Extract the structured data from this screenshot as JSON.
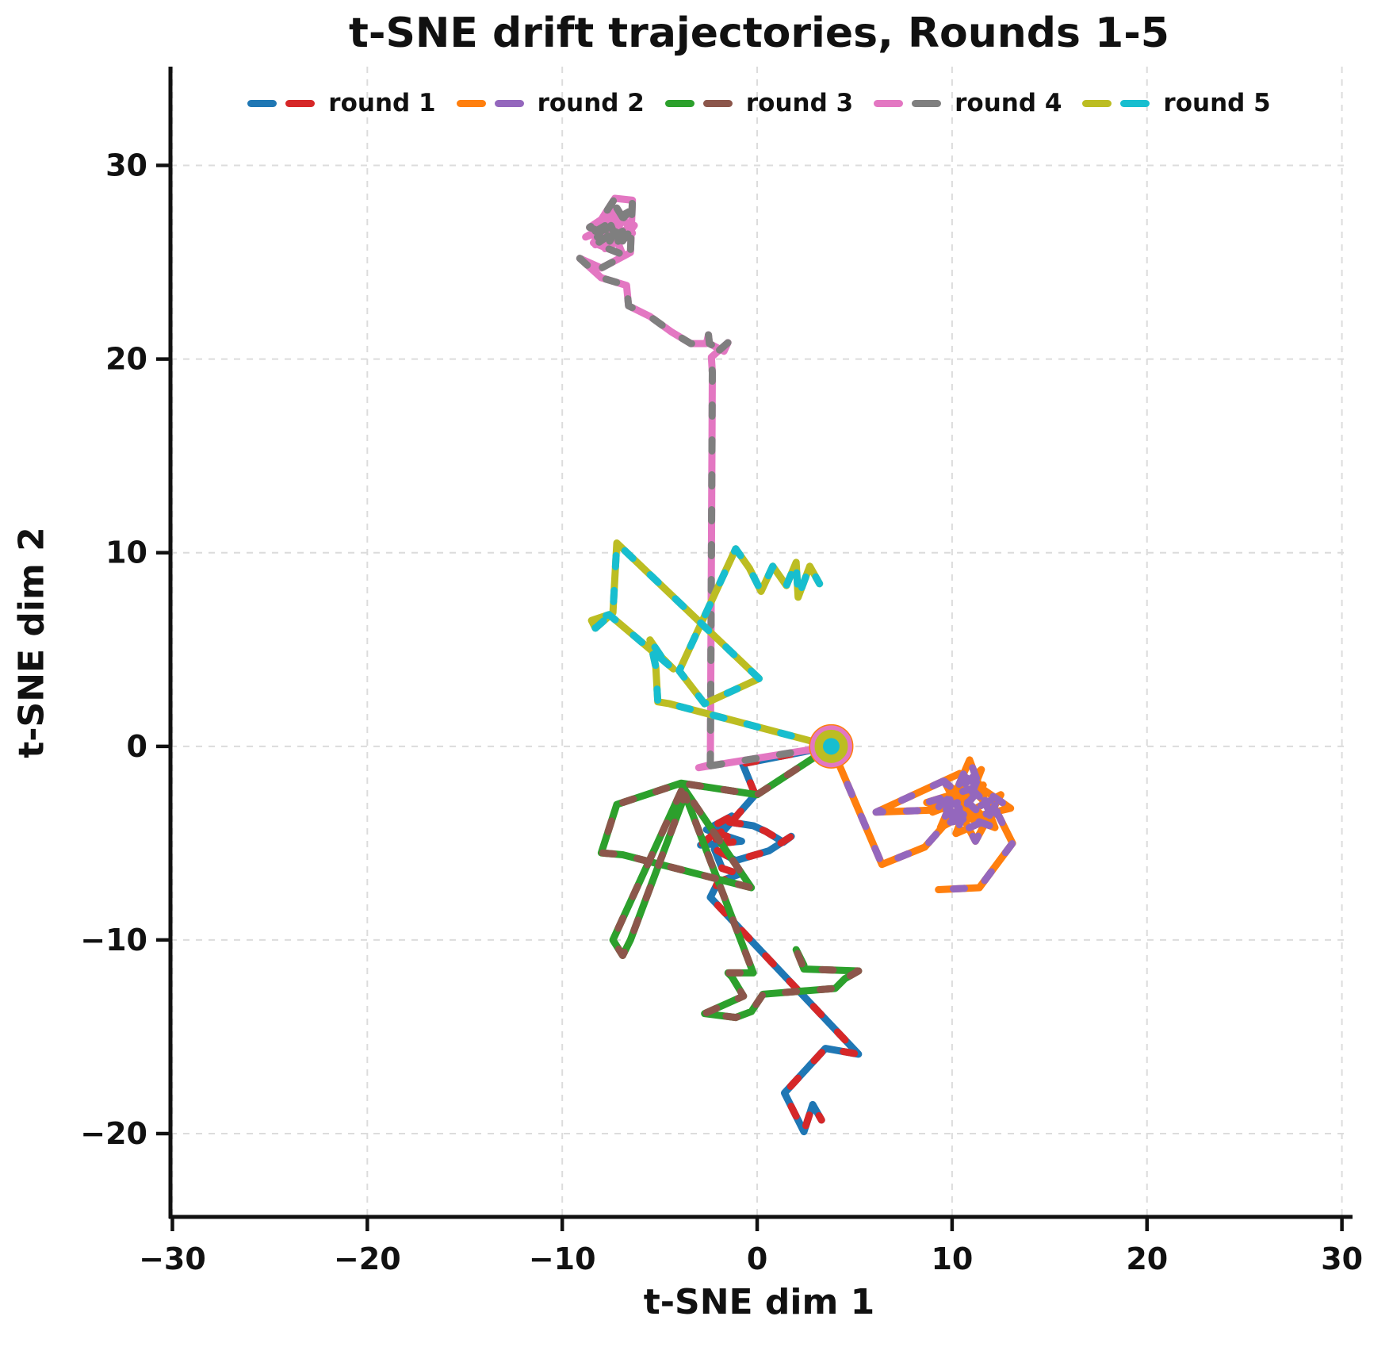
{
  "figure": {
    "title": "t-SNE drift trajectories, Rounds 1-5",
    "xlabel": "t-SNE dim 1",
    "ylabel": "t-SNE dim 2"
  },
  "chart_data": {
    "type": "line",
    "title": "t-SNE drift trajectories, Rounds 1-5",
    "xlabel": "t-SNE dim 1",
    "ylabel": "t-SNE dim 2",
    "xlim": [
      -30.1,
      30.3
    ],
    "ylim": [
      -24.3,
      35.1
    ],
    "xticks": [
      -30,
      -20,
      -10,
      0,
      10,
      20,
      30
    ],
    "yticks": [
      -20,
      -10,
      0,
      10,
      20,
      30
    ],
    "grid": true,
    "grid_color": "#dcdcdc",
    "legend_position": "top-center",
    "line_style": "two-color dashed, round caps",
    "start_marker": {
      "x": 3.8,
      "y": 0.0,
      "description": "concentric ring marker at shared start point of all rounds",
      "rings": [
        {
          "color": "#ff7f0e",
          "r": 23,
          "sw": 10,
          "fill": false
        },
        {
          "color": "#e377c2",
          "r": 21.5,
          "sw": 10,
          "fill": false
        },
        {
          "color": "#bcbd22",
          "r": 15.5,
          "sw": 11,
          "fill": false
        },
        {
          "color": "#17becf",
          "r": 10.5,
          "sw": 0,
          "fill": true
        }
      ]
    },
    "series": [
      {
        "name": "round 1",
        "colors": [
          "#1f77b4",
          "#d62728"
        ],
        "points": [
          [
            3.8,
            0.0
          ],
          [
            -0.75,
            -0.9
          ],
          [
            -0.1,
            -2.5
          ],
          [
            -2.1,
            -4.8
          ],
          [
            -1.3,
            -3.6
          ],
          [
            -2.6,
            -4.3
          ],
          [
            -0.8,
            -4.9
          ],
          [
            -2.9,
            -5.1
          ],
          [
            -1.5,
            -3.9
          ],
          [
            -0.2,
            -4.1
          ],
          [
            0.45,
            -4.4
          ],
          [
            1.35,
            -4.95
          ],
          [
            1.75,
            -4.65
          ],
          [
            0.6,
            -5.4
          ],
          [
            -1.1,
            -5.9
          ],
          [
            -2.2,
            -5.3
          ],
          [
            -1.8,
            -6.3
          ],
          [
            -0.9,
            -6.6
          ],
          [
            -2.0,
            -7.0
          ],
          [
            -2.4,
            -7.8
          ],
          [
            5.2,
            -15.9
          ],
          [
            3.5,
            -15.6
          ],
          [
            1.4,
            -17.9
          ],
          [
            2.4,
            -19.9
          ],
          [
            2.85,
            -18.5
          ],
          [
            3.3,
            -19.3
          ]
        ]
      },
      {
        "name": "round 2",
        "colors": [
          "#ff7f0e",
          "#9467bd"
        ],
        "points": [
          [
            3.8,
            0.0
          ],
          [
            6.4,
            -6.1
          ],
          [
            8.6,
            -5.2
          ],
          [
            10.8,
            -2.7
          ],
          [
            9.0,
            -3.4
          ],
          [
            11.5,
            -1.2
          ],
          [
            10.2,
            -4.5
          ],
          [
            11.8,
            -3.8
          ],
          [
            9.6,
            -1.8
          ],
          [
            11.2,
            -4.9
          ],
          [
            12.5,
            -2.5
          ],
          [
            9.4,
            -4.2
          ],
          [
            10.9,
            -0.7
          ],
          [
            12.2,
            -4.2
          ],
          [
            8.7,
            -2.9
          ],
          [
            11.6,
            -2.0
          ],
          [
            10.0,
            -3.9
          ],
          [
            13.0,
            -3.2
          ],
          [
            10.4,
            -1.4
          ],
          [
            6.1,
            -3.4
          ],
          [
            8.8,
            -3.3
          ],
          [
            11.0,
            -2.2
          ],
          [
            12.4,
            -3.6
          ],
          [
            13.1,
            -5.0
          ],
          [
            11.4,
            -7.3
          ],
          [
            9.3,
            -7.4
          ]
        ]
      },
      {
        "name": "round 3",
        "colors": [
          "#2ca02c",
          "#8c564b"
        ],
        "points": [
          [
            3.8,
            0.0
          ],
          [
            0.0,
            -2.5
          ],
          [
            -3.9,
            -1.9
          ],
          [
            -7.2,
            -3.0
          ],
          [
            -8.0,
            -5.5
          ],
          [
            -6.9,
            -5.6
          ],
          [
            -0.3,
            -7.3
          ],
          [
            -3.8,
            -2.1
          ],
          [
            -7.4,
            -10.0
          ],
          [
            -6.9,
            -10.8
          ],
          [
            -6.5,
            -10.0
          ],
          [
            -3.7,
            -2.5
          ],
          [
            -0.2,
            -11.7
          ],
          [
            -1.5,
            -11.7
          ],
          [
            -1.3,
            -11.9
          ],
          [
            -0.7,
            -12.9
          ],
          [
            -2.7,
            -13.8
          ],
          [
            -1.1,
            -14.0
          ],
          [
            -0.3,
            -13.7
          ],
          [
            0.3,
            -12.8
          ],
          [
            4.0,
            -12.5
          ],
          [
            4.5,
            -12.0
          ],
          [
            5.2,
            -11.6
          ],
          [
            2.4,
            -11.5
          ],
          [
            2.0,
            -10.5
          ],
          [
            2.4,
            -11.3
          ]
        ]
      },
      {
        "name": "round 4",
        "colors": [
          "#e377c2",
          "#7f7f7f"
        ],
        "points": [
          [
            3.8,
            0.0
          ],
          [
            -3.0,
            -1.1
          ],
          [
            -2.4,
            -0.95
          ],
          [
            -2.3,
            19.3
          ],
          [
            -2.35,
            20.1
          ],
          [
            -1.5,
            20.85
          ],
          [
            -1.7,
            20.4
          ],
          [
            -2.45,
            20.8
          ],
          [
            -2.5,
            21.25
          ],
          [
            -2.6,
            20.8
          ],
          [
            -3.4,
            20.8
          ],
          [
            -4.4,
            21.4
          ],
          [
            -5.5,
            22.2
          ],
          [
            -6.6,
            22.75
          ],
          [
            -6.7,
            23.8
          ],
          [
            -8.0,
            24.2
          ],
          [
            -9.1,
            25.2
          ],
          [
            -8.0,
            24.7
          ],
          [
            -6.5,
            25.5
          ],
          [
            -6.4,
            28.2
          ],
          [
            -7.3,
            28.3
          ],
          [
            -8.0,
            27.2
          ],
          [
            -8.6,
            26.8
          ],
          [
            -6.9,
            26.1
          ],
          [
            -6.3,
            26.9
          ],
          [
            -8.3,
            25.9
          ],
          [
            -7.6,
            26.4
          ],
          [
            -6.6,
            27.6
          ],
          [
            -8.8,
            26.3
          ],
          [
            -7.0,
            27.0
          ],
          [
            -7.8,
            25.7
          ],
          [
            -6.4,
            26.5
          ],
          [
            -7.2,
            27.8
          ],
          [
            -8.4,
            26.0
          ],
          [
            -6.9,
            25.4
          ],
          [
            -7.5,
            26.9
          ]
        ]
      },
      {
        "name": "round 5",
        "colors": [
          "#bcbd22",
          "#17becf"
        ],
        "points": [
          [
            3.8,
            0.0
          ],
          [
            -4.5,
            2.2
          ],
          [
            -5.1,
            2.3
          ],
          [
            -5.2,
            4.1
          ],
          [
            -5.5,
            5.5
          ],
          [
            -4.9,
            4.6
          ],
          [
            -4.3,
            4.0
          ],
          [
            -7.6,
            6.8
          ],
          [
            -8.5,
            6.5
          ],
          [
            -8.3,
            6.1
          ],
          [
            -7.4,
            6.9
          ],
          [
            -7.2,
            10.5
          ],
          [
            0.1,
            3.5
          ],
          [
            -2.7,
            2.2
          ],
          [
            -4.0,
            3.9
          ],
          [
            -1.1,
            10.2
          ],
          [
            -0.4,
            9.2
          ],
          [
            0.2,
            8.0
          ],
          [
            0.8,
            9.3
          ],
          [
            1.5,
            8.3
          ],
          [
            2.0,
            9.5
          ],
          [
            2.1,
            7.7
          ],
          [
            2.7,
            9.3
          ],
          [
            3.2,
            8.4
          ]
        ]
      }
    ]
  }
}
